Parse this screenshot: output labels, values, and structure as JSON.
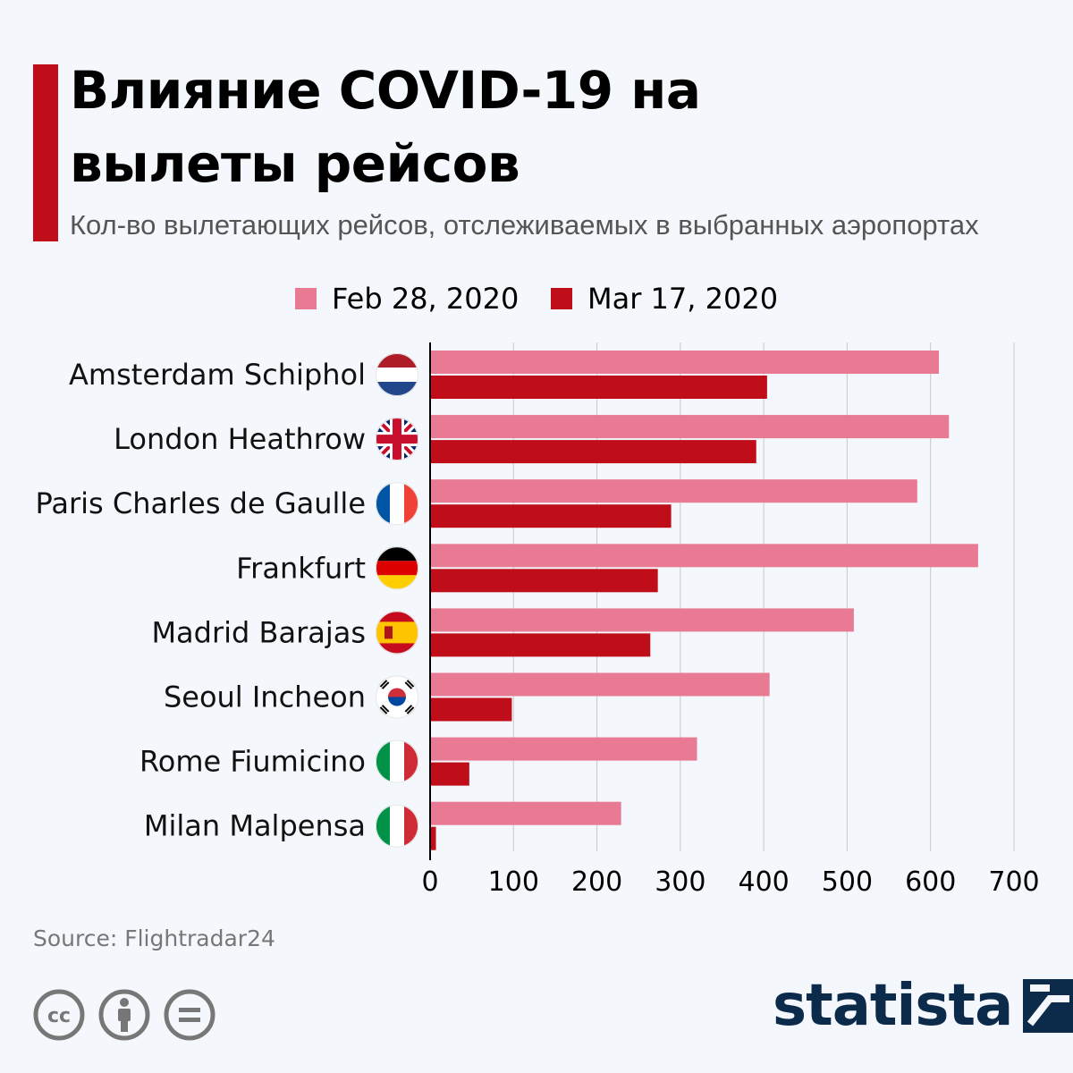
{
  "header": {
    "title_line1": "Влияние COVID-19 на",
    "title_line2": "вылеты рейсов",
    "subtitle": "Кол-во вылетающих рейсов, отслеживаемых в выбранных аэропортах"
  },
  "legend": [
    {
      "label": "Feb 28, 2020",
      "color": "#e87a93"
    },
    {
      "label": "Mar 17, 2020",
      "color": "#c00d1a"
    }
  ],
  "flags": [
    "netherlands-flag-icon",
    "uk-flag-icon",
    "france-flag-icon",
    "germany-flag-icon",
    "spain-flag-icon",
    "south-korea-flag-icon",
    "italy-flag-icon",
    "italy-flag-icon"
  ],
  "chart_data": {
    "type": "bar",
    "orientation": "horizontal",
    "categories": [
      "Amsterdam Schiphol",
      "London Heathrow",
      "Paris Charles de Gaulle",
      "Frankfurt",
      "Madrid Barajas",
      "Seoul Incheon",
      "Rome Fiumicino",
      "Milan Malpensa"
    ],
    "series": [
      {
        "name": "Feb 28, 2020",
        "color": "#e87a93",
        "values": [
          610,
          622,
          584,
          657,
          508,
          407,
          320,
          229
        ]
      },
      {
        "name": "Mar 17, 2020",
        "color": "#c00d1a",
        "values": [
          404,
          391,
          289,
          273,
          264,
          98,
          47,
          7
        ]
      }
    ],
    "x_ticks": [
      0,
      100,
      200,
      300,
      400,
      500,
      600,
      700
    ],
    "xlim": [
      0,
      700
    ],
    "grid": true,
    "legend_position": "top"
  },
  "footer": {
    "source": "Source: Flightradar24",
    "brand": "statista",
    "license_icons": [
      "cc-icon",
      "attribution-icon",
      "no-derivatives-icon"
    ]
  }
}
